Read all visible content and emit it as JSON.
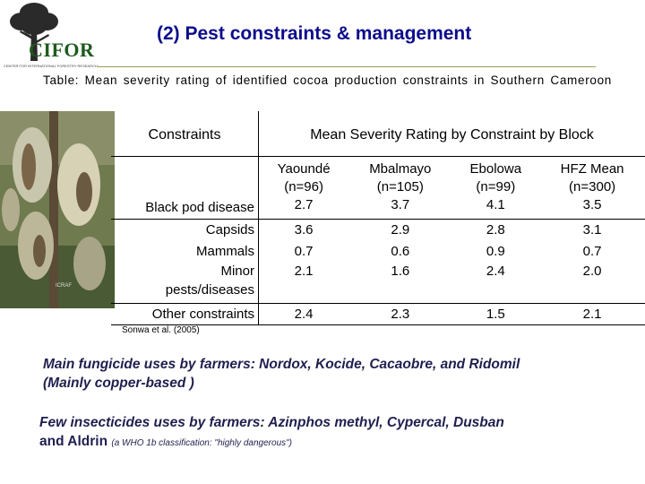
{
  "logo": {
    "text": "CIFOR",
    "subtitle": "CENTER FOR INTERNATIONAL FORESTRY RESEARCH",
    "tree_color": "#2a2a2a"
  },
  "title": "(2) Pest constraints & management",
  "caption": "Table: Mean severity rating of identified  cocoa production constraints in Southern Cameroon",
  "photo": {
    "watermark": "ICRAF"
  },
  "table": {
    "header_constraints": "Constraints",
    "header_mean": "Mean Severity Rating by Constraint by Block",
    "columns": [
      {
        "name": "Yaoundé",
        "n": "(n=96)"
      },
      {
        "name": "Mbalmayo",
        "n": "(n=105)"
      },
      {
        "name": "Ebolowa",
        "n": "(n=99)"
      },
      {
        "name": "HFZ Mean",
        "n": "(n=300)"
      }
    ],
    "rows": [
      {
        "label": "Black pod disease",
        "values": [
          "2.7",
          "3.7",
          "4.1",
          "3.5"
        ]
      },
      {
        "label": "Capsids",
        "values": [
          "3.6",
          "2.9",
          "2.8",
          "3.1"
        ]
      },
      {
        "label": "Mammals",
        "values": [
          "0.7",
          "0.6",
          "0.9",
          "0.7"
        ]
      },
      {
        "label_lines": [
          "Minor",
          "pests/diseases"
        ],
        "values": [
          "2.1",
          "1.6",
          "2.4",
          "2.0"
        ]
      },
      {
        "label": "Other constraints",
        "values": [
          "2.4",
          "2.3",
          "1.5",
          "2.1"
        ]
      }
    ]
  },
  "source": "Sonwa et al. (2005)",
  "note_fungicide": {
    "line1": "Main fungicide uses by farmers: Nordox, Kocide, Cacaobre, and Ridomil",
    "line2": "(Mainly copper-based )"
  },
  "note_insecticide": {
    "line1": "Few insecticides uses by farmers: Azinphos methyl, Cypercal, Dusban",
    "line2": "and Aldrin",
    "line2_small": "(a WHO 1b classification: \"highly dangerous\")"
  }
}
